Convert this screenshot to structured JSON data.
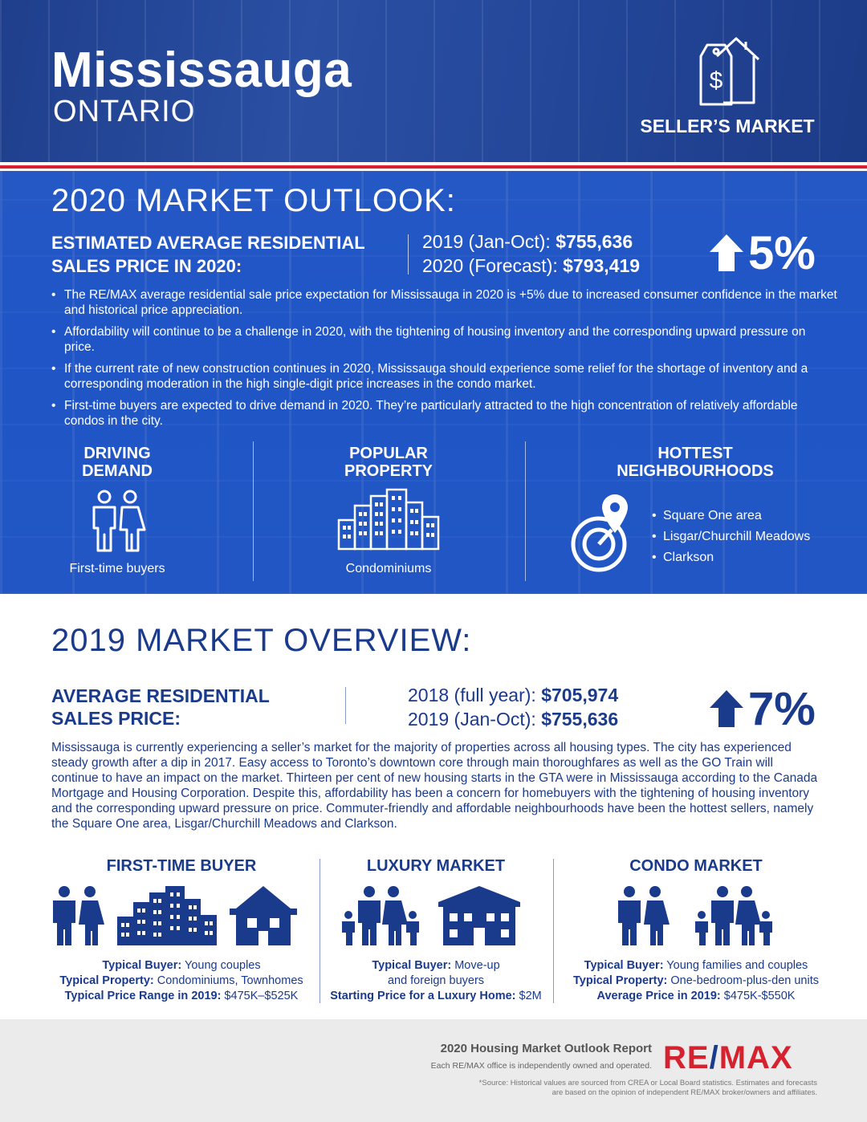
{
  "header": {
    "city": "Mississauga",
    "province": "ONTARIO",
    "market_type": "SELLER’S MARKET",
    "market_icon": "price-tag-house-icon"
  },
  "outlook": {
    "title": "2020 MARKET OUTLOOK:",
    "estimate_label_1": "ESTIMATED AVERAGE RESIDENTIAL",
    "estimate_label_2": "SALES PRICE IN 2020:",
    "line1_label": "2019 (Jan-Oct): ",
    "line1_value": "$755,636",
    "line2_label": "2020 (Forecast): ",
    "line2_value": "$793,419",
    "change": "5%",
    "bullets": [
      "The RE/MAX average residential sale price expectation for Mississauga in 2020 is +5% due to increased consumer confidence in the market and historical price appreciation.",
      "Affordability will continue to be a challenge in 2020, with the tightening of housing inventory and the corresponding upward pressure on price.",
      "If the current rate of new construction continues in 2020, Mississauga should experience some relief for the shortage of inventory and a corresponding moderation in the high single-digit price increases in the condo market.",
      "First-time buyers are expected to drive demand in 2020. They’re particularly attracted to the high concentration of relatively affordable condos in the city."
    ],
    "driving_demand": {
      "head1": "DRIVING",
      "head2": "DEMAND",
      "caption": "First-time buyers"
    },
    "popular_property": {
      "head1": "POPULAR",
      "head2": "PROPERTY",
      "caption": "Condominiums"
    },
    "hottest": {
      "head1": "HOTTEST",
      "head2": "NEIGHBOURHOODS",
      "items": [
        "Square One area",
        "Lisgar/Churchill Meadows",
        "Clarkson"
      ]
    }
  },
  "overview": {
    "title": "2019 MARKET OVERVIEW:",
    "avg_label_1": "AVERAGE RESIDENTIAL",
    "avg_label_2": "SALES PRICE:",
    "line1_label": "2018 (full year): ",
    "line1_value": "$705,974",
    "line2_label": "2019 (Jan-Oct): ",
    "line2_value": "$755,636",
    "change": "7%",
    "paragraph": "Mississauga is currently experiencing a seller’s market for the majority of properties across all housing types. The city has experienced steady growth after a dip in 2017. Easy access to Toronto’s downtown core through main thoroughfares as well as the GO Train will continue to have an impact on the market. Thirteen per cent of new housing starts in the GTA were in Mississauga according to the Canada Mortgage and Housing Corporation. Despite this, affordability has been a concern for homebuyers with the tightening of housing inventory and the corresponding upward pressure on price. Commuter-friendly and affordable neighbourhoods have been the hottest sellers, namely the Square One area, Lisgar/Churchill Meadows and Clarkson."
  },
  "segments": {
    "first_time": {
      "title": "FIRST-TIME BUYER",
      "buyer_label": "Typical Buyer:",
      "buyer_value": " Young couples",
      "property_label": "Typical Property:",
      "property_value": " Condominiums, Townhomes",
      "price_label": "Typical Price Range in 2019:",
      "price_value": " $475K–$525K"
    },
    "luxury": {
      "title": "LUXURY MARKET",
      "buyer_label": "Typical Buyer:",
      "buyer_value": " Move-up",
      "buyer_value_2": "and foreign buyers",
      "price_label": "Starting Price for a Luxury Home:",
      "price_value": " $2M"
    },
    "condo": {
      "title": "CONDO MARKET",
      "buyer_label": "Typical Buyer:",
      "buyer_value": " Young families and couples",
      "property_label": "Typical Property:",
      "property_value": " One-bedroom-plus-den units",
      "price_label": "Average Price in 2019:",
      "price_value": " $475K-$550K"
    }
  },
  "footer": {
    "report_title": "2020 Housing Market Outlook Report",
    "ownership_note": "Each RE/MAX office is independently owned and operated.",
    "brand_left": "RE",
    "brand_slash": "/",
    "brand_right": "MAX",
    "source_1": "*Source: Historical values are sourced from CREA or Local Board statistics. Estimates and forecasts",
    "source_2": "are based on the opinion of independent RE/MAX broker/owners and affiliates."
  },
  "colors": {
    "navy": "#1a3a8c",
    "blue": "#1f55c7",
    "red": "#d6222f",
    "footer_bg": "#ebebeb"
  }
}
